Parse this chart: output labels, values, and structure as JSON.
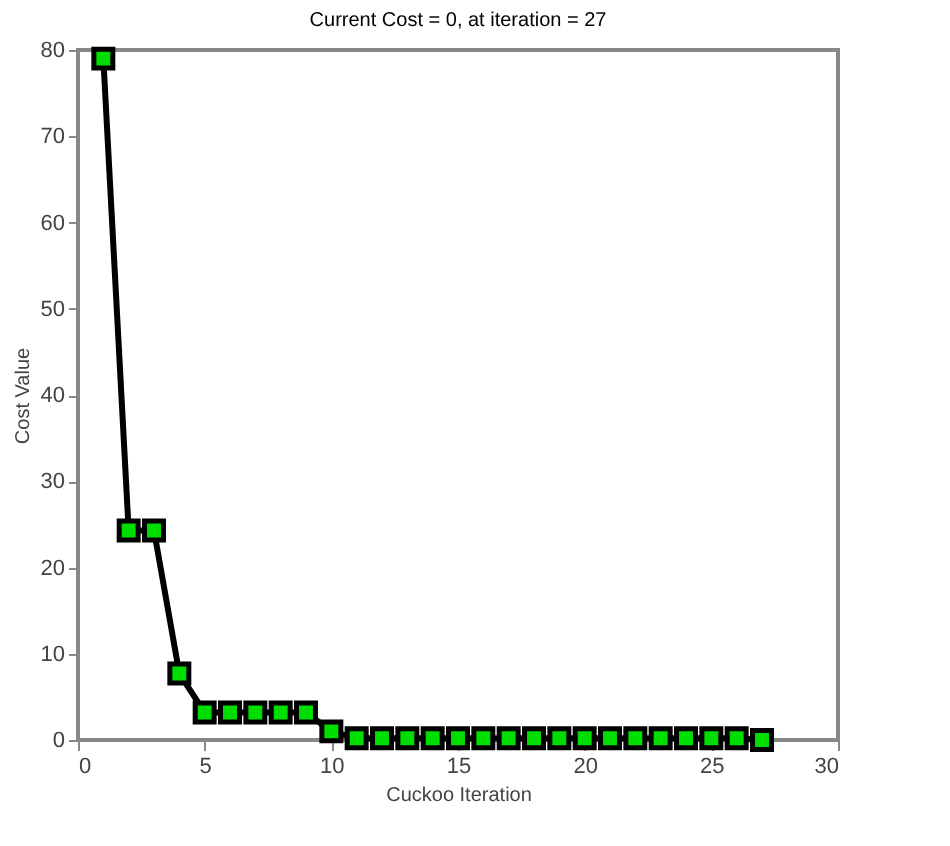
{
  "chart_data": {
    "type": "line",
    "title": "Current Cost = 0, at iteration = 27",
    "xlabel": "Cuckoo Iteration",
    "ylabel": "Cost Value",
    "x": [
      1,
      2,
      3,
      4,
      5,
      6,
      7,
      8,
      9,
      10,
      11,
      12,
      13,
      14,
      15,
      16,
      17,
      18,
      19,
      20,
      21,
      22,
      23,
      24,
      25,
      26,
      27
    ],
    "series": [
      {
        "color": "#000000",
        "values": [
          79,
          24.3,
          24.3,
          7.7,
          3.2,
          3.2,
          3.2,
          3.2,
          3.2,
          1,
          0.2,
          0.2,
          0.2,
          0.2,
          0.2,
          0.2,
          0.2,
          0.2,
          0.2,
          0.2,
          0.2,
          0.2,
          0.2,
          0.2,
          0.2,
          0.2,
          0
        ]
      }
    ],
    "xlim": [
      0,
      30
    ],
    "xticks": [
      0,
      5,
      10,
      15,
      20,
      25,
      30
    ],
    "ylim": [
      0,
      80
    ],
    "yticks": [
      0,
      10,
      20,
      30,
      40,
      50,
      60,
      70,
      80
    ],
    "grid": false,
    "marker": "square",
    "line_style": "solid"
  }
}
